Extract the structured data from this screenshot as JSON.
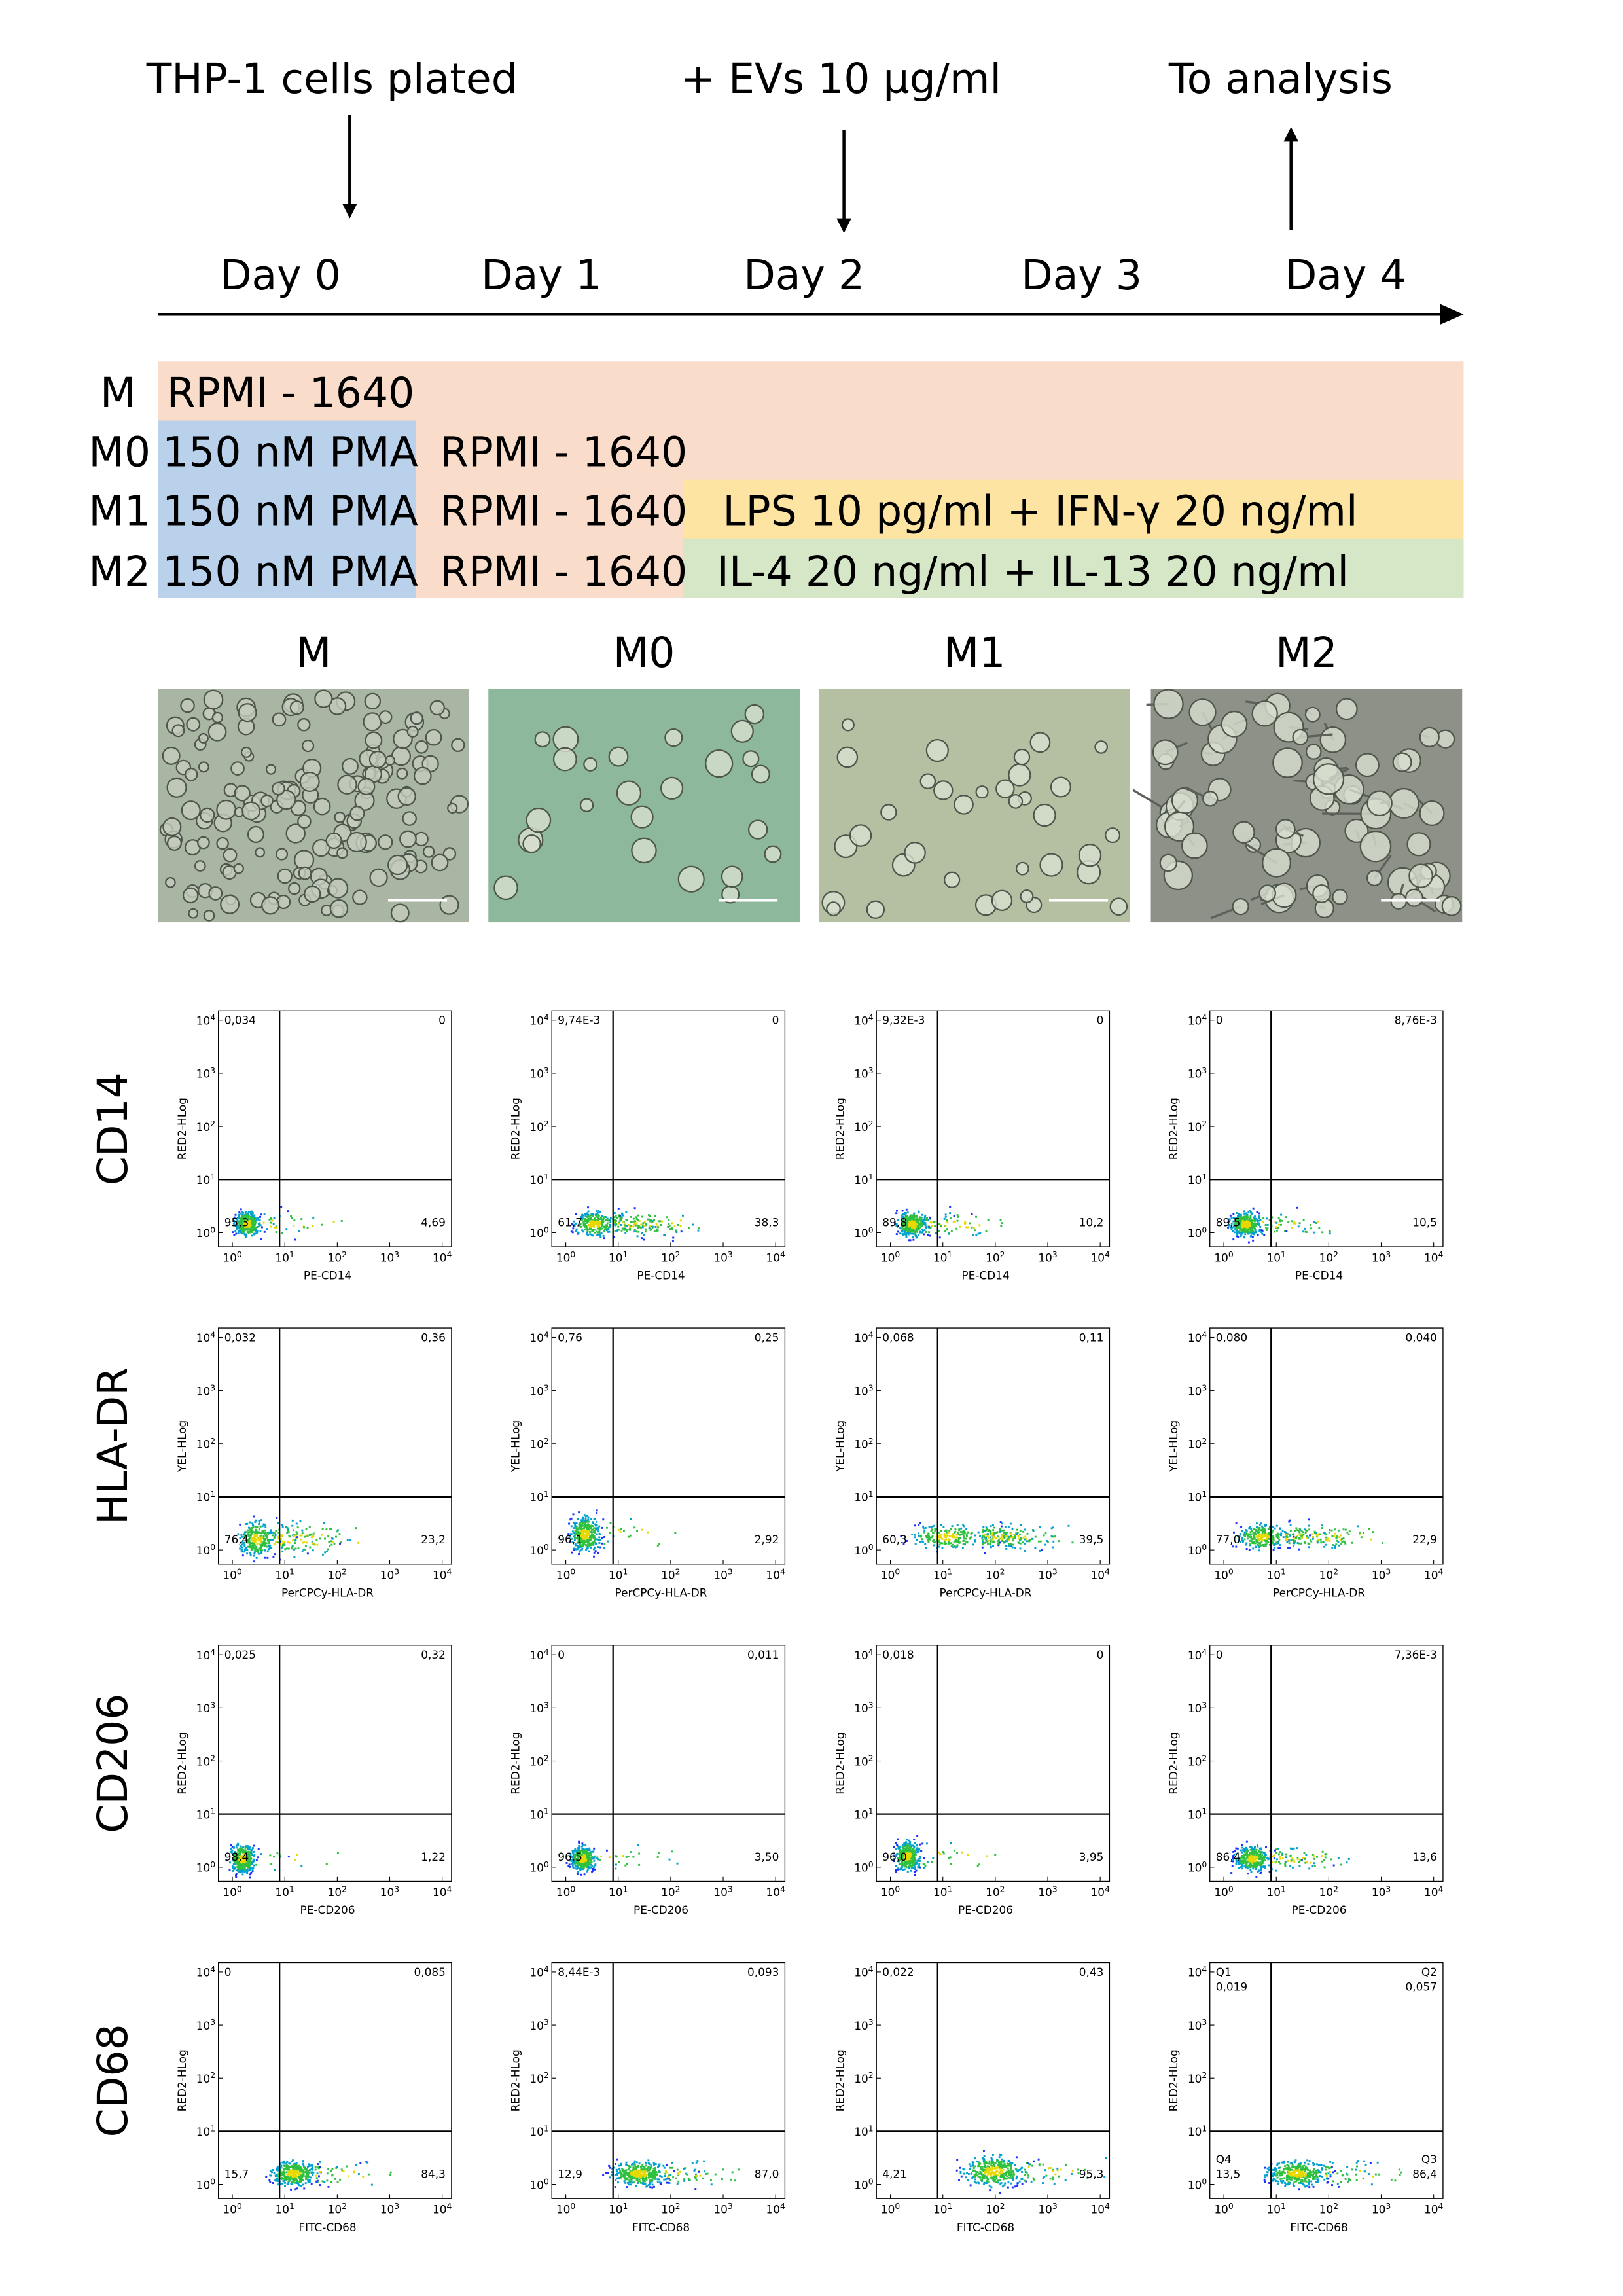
{
  "timeline": {
    "events": [
      "THP-1 cells plated",
      "+ EVs 10 µg/ml",
      "To analysis"
    ],
    "days": [
      "Day 0",
      "Day 1",
      "Day 2",
      "Day 3",
      "Day 4"
    ]
  },
  "media": {
    "rows": [
      {
        "label": "M",
        "segments": [
          "RPMI - 1640"
        ]
      },
      {
        "label": "M0",
        "segments": [
          "150 nM PMA",
          "RPMI - 1640"
        ]
      },
      {
        "label": "M1",
        "segments": [
          "150 nM PMA",
          "RPMI - 1640",
          "LPS 10 pg/ml + IFN-γ 20 ng/ml"
        ]
      },
      {
        "label": "M2",
        "segments": [
          "150 nM PMA",
          "RPMI - 1640",
          "IL-4 20 ng/ml + IL-13 20 ng/ml"
        ]
      }
    ]
  },
  "micrographs": {
    "labels": [
      "M",
      "M0",
      "M1",
      "M2"
    ]
  },
  "flow": {
    "tick_base": "10",
    "tick_exponents": [
      "0",
      "1",
      "2",
      "3",
      "4"
    ],
    "rows": [
      {
        "marker": "CD14",
        "y_label": "RED2-HLog",
        "x_label": "PE-CD14",
        "panels": [
          {
            "ul": "0,034",
            "ur": "0",
            "ll": "95,3",
            "lr": "4,69"
          },
          {
            "ul": "9,74E-3",
            "ur": "0",
            "ll": "61,7",
            "lr": "38,3"
          },
          {
            "ul": "9,32E-3",
            "ur": "0",
            "ll": "89,8",
            "lr": "10,2"
          },
          {
            "ul": "0",
            "ur": "8,76E-3",
            "ll": "89,5",
            "lr": "10,5"
          }
        ]
      },
      {
        "marker": "HLA-DR",
        "y_label": "YEL-HLog",
        "x_label": "PerCPCy-HLA-DR",
        "panels": [
          {
            "ul": "0,032",
            "ur": "0,36",
            "ll": "76,4",
            "lr": "23,2"
          },
          {
            "ul": "0,76",
            "ur": "0,25",
            "ll": "96,1",
            "lr": "2,92"
          },
          {
            "ul": "0,068",
            "ur": "0,11",
            "ll": "60,3",
            "lr": "39,5"
          },
          {
            "ul": "0,080",
            "ur": "0,040",
            "ll": "77,0",
            "lr": "22,9"
          }
        ]
      },
      {
        "marker": "CD206",
        "y_label": "RED2-HLog",
        "x_label": "PE-CD206",
        "panels": [
          {
            "ul": "0,025",
            "ur": "0,32",
            "ll": "98,4",
            "lr": "1,22"
          },
          {
            "ul": "0",
            "ur": "0,011",
            "ll": "96,5",
            "lr": "3,50"
          },
          {
            "ul": "0,018",
            "ur": "0",
            "ll": "96,0",
            "lr": "3,95"
          },
          {
            "ul": "0",
            "ur": "7,36E-3",
            "ll": "86,4",
            "lr": "13,6"
          }
        ]
      },
      {
        "marker": "CD68",
        "y_label": "RED2-HLog",
        "x_label": "FITC-CD68",
        "panels": [
          {
            "ul": "0",
            "ur": "0,085",
            "ll": "15,7",
            "lr": "84,3"
          },
          {
            "ul": "8,44E-3",
            "ur": "0,093",
            "ll": "12,9",
            "lr": "87,0"
          },
          {
            "ul": "0,022",
            "ur": "0,43",
            "ll": "4,21",
            "lr": "95,3"
          },
          {
            "ul": "0,019",
            "ur": "0,057",
            "ll": "13,5",
            "lr": "86,4",
            "quadrant_labels": [
              "Q1",
              "Q2",
              "Q3",
              "Q4"
            ]
          }
        ]
      }
    ]
  }
}
